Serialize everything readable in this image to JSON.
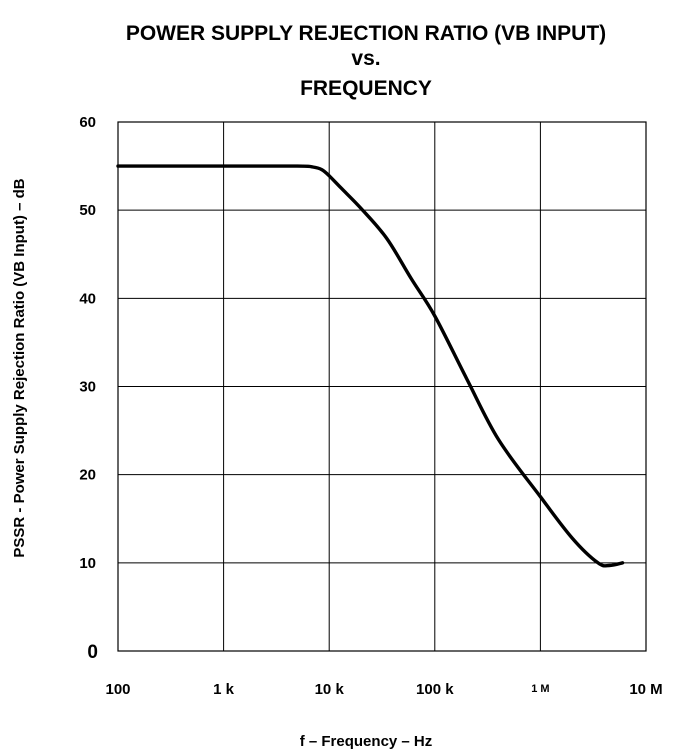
{
  "chart_data": {
    "type": "line",
    "title_lines": [
      "POWER SUPPLY REJECTION RATIO (VB INPUT)",
      "vs.",
      "FREQUENCY"
    ],
    "xlabel": "f – Frequency – Hz",
    "ylabel": "PSSR - Power Supply Rejection Ratio (VB Input) – dB",
    "x_scale": "log",
    "xlim": [
      100,
      10000000
    ],
    "ylim": [
      0,
      60
    ],
    "x_ticks": [
      {
        "value": 100,
        "label": "100"
      },
      {
        "value": 1000,
        "label": "1 k"
      },
      {
        "value": 10000,
        "label": "10 k"
      },
      {
        "value": 100000,
        "label": "100 k"
      },
      {
        "value": 1000000,
        "label": "1 M"
      },
      {
        "value": 10000000,
        "label": "10 M"
      }
    ],
    "y_ticks": [
      {
        "value": 0,
        "label": "0"
      },
      {
        "value": 10,
        "label": "10"
      },
      {
        "value": 20,
        "label": "20"
      },
      {
        "value": 30,
        "label": "30"
      },
      {
        "value": 40,
        "label": "40"
      },
      {
        "value": 50,
        "label": "50"
      },
      {
        "value": 60,
        "label": "60"
      }
    ],
    "grid": true,
    "legend": "none",
    "series": [
      {
        "x": [
          100,
          1000,
          5000,
          7000,
          8500,
          10000,
          13000,
          20000,
          35000,
          60000,
          100000,
          200000,
          400000,
          1000000,
          2000000,
          3500000,
          4500000,
          6000000
        ],
        "y": [
          55,
          55,
          55,
          54.9,
          54.6,
          53.9,
          52.5,
          50.2,
          46.8,
          42.2,
          38,
          30.9,
          24,
          17.5,
          12.8,
          10,
          9.7,
          10
        ]
      }
    ]
  }
}
